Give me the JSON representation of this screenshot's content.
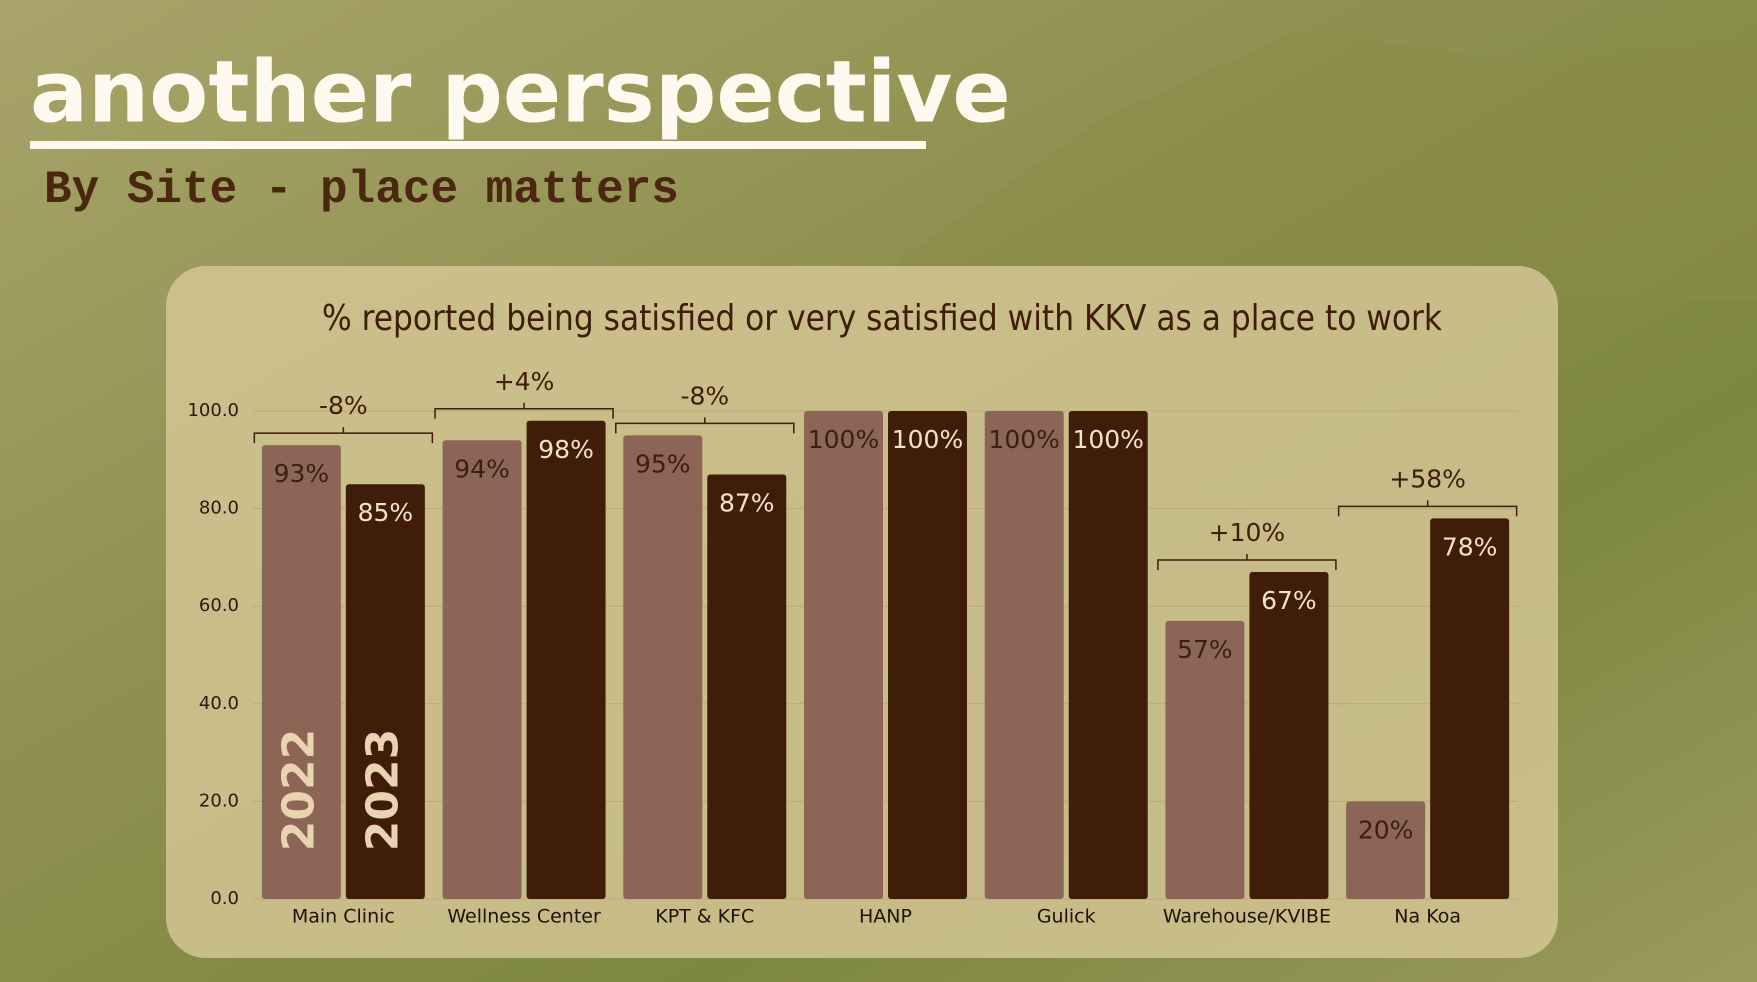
{
  "header": {
    "title": "another perspective",
    "subtitle": "By Site - place matters"
  },
  "chart_data": {
    "type": "bar",
    "title": "% reported being satisfied or very satisfied with KKV as a place to work",
    "categories": [
      "Main Clinic",
      "Wellness Center",
      "KPT & KFC",
      "HANP",
      "Gulick",
      "Warehouse/KVIBE",
      "Na Koa"
    ],
    "series": [
      {
        "name": "2022",
        "color": "#8c6557",
        "values": [
          93,
          94,
          95,
          100,
          100,
          57,
          20
        ],
        "value_labels": [
          "93%",
          "94%",
          "95%",
          "100%",
          "100%",
          "57%",
          "20%"
        ]
      },
      {
        "name": "2023",
        "color": "#3f1d09",
        "values": [
          85,
          98,
          87,
          100,
          100,
          67,
          78
        ],
        "value_labels": [
          "85%",
          "98%",
          "87%",
          "100%",
          "100%",
          "67%",
          "78%"
        ]
      }
    ],
    "changes": [
      "-8%",
      "+4%",
      "-8%",
      null,
      null,
      "+10%",
      "+58%"
    ],
    "ylim": [
      0,
      100
    ],
    "yticks": [
      {
        "value": 0,
        "label": "0.0"
      },
      {
        "value": 20,
        "label": "20.0"
      },
      {
        "value": 40,
        "label": "40.0"
      },
      {
        "value": 60,
        "label": "60.0"
      },
      {
        "value": 80,
        "label": "80.0"
      },
      {
        "value": 100,
        "label": "100.0"
      }
    ],
    "grid": true
  }
}
